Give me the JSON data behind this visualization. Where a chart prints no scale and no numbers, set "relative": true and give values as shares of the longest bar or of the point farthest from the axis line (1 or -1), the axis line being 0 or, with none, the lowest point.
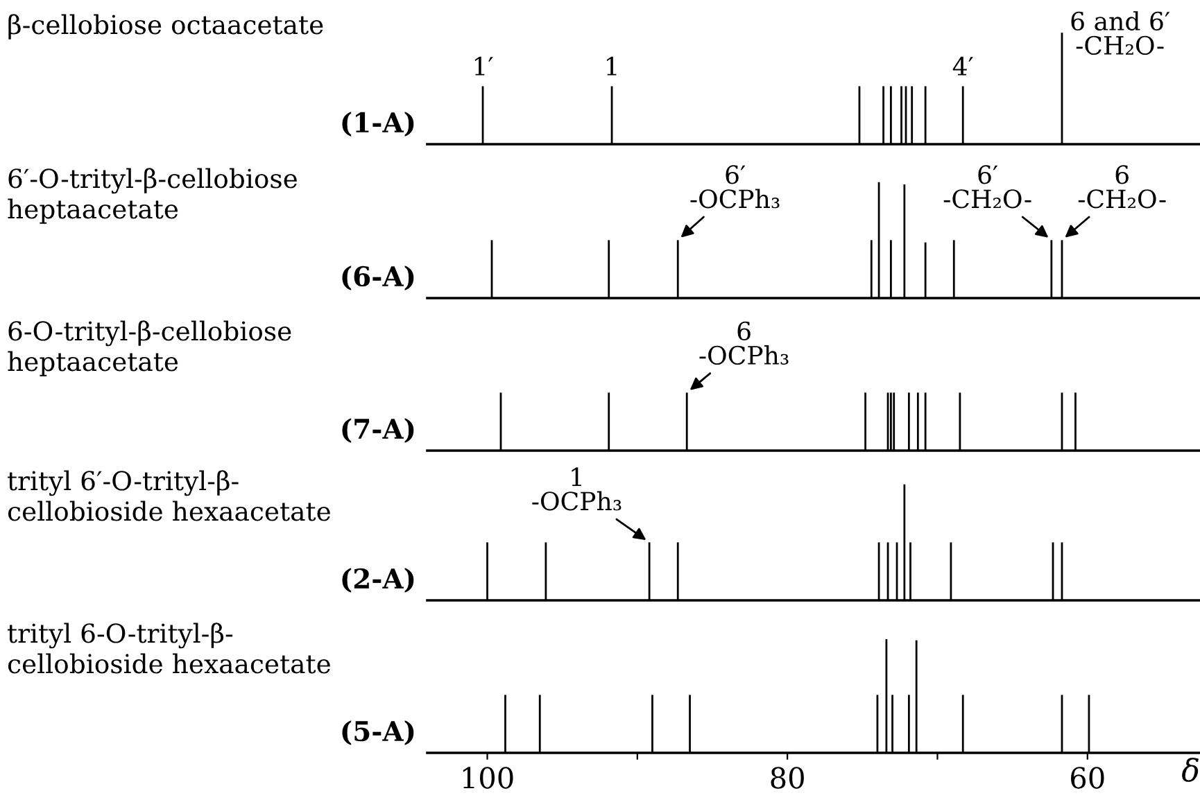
{
  "chart_data": [
    {
      "type": "bar",
      "title": "β-cellobiose octaacetate",
      "subtitle": "(1-A)",
      "relative": true,
      "color": "#000000",
      "xlim": [
        104,
        52.5
      ],
      "grid": false,
      "legend": false,
      "x": [
        100.3,
        91.7,
        75.2,
        73.6,
        73.1,
        72.4,
        72.1,
        71.7,
        70.8,
        68.3,
        61.7
      ],
      "values": [
        0.52,
        0.52,
        0.52,
        0.52,
        0.52,
        0.52,
        0.52,
        0.52,
        0.52,
        0.52,
        1
      ],
      "annotations": [
        {
          "text": "1′",
          "x": 100.3,
          "y": 0.52
        },
        {
          "text": "1",
          "x": 91.7,
          "y": 0.52
        },
        {
          "text": "4′",
          "x": 68.3,
          "y": 0.52
        },
        {
          "text": "6 and 6′\n-CH₂O-",
          "x": 61.7,
          "y": 1
        }
      ]
    },
    {
      "type": "bar",
      "title": "6′-O-trityl-β-cellobiose\nheptaacetate",
      "subtitle": "(6-A)",
      "relative": true,
      "color": "#000000",
      "xlim": [
        104,
        52.5
      ],
      "grid": false,
      "legend": false,
      "x": [
        99.7,
        91.9,
        87.3,
        74.4,
        73.9,
        73.1,
        72.2,
        70.8,
        68.9,
        62.4,
        61.7
      ],
      "values": [
        0.5,
        0.5,
        0.5,
        0.5,
        1,
        0.5,
        0.98,
        0.48,
        0.5,
        0.5,
        0.5
      ],
      "annotations": [
        {
          "text": "6′\n-OCPh₃",
          "x": 87.3,
          "y": 0.5
        },
        {
          "text": "6′\n-CH₂O-",
          "x": 62.4,
          "y": 0.5
        },
        {
          "text": "6\n-CH₂O-",
          "x": 61.7,
          "y": 0.5
        }
      ]
    },
    {
      "type": "bar",
      "title": "6-O-trityl-β-cellobiose\nheptaacetate",
      "subtitle": "(7-A)",
      "relative": true,
      "color": "#000000",
      "xlim": [
        104,
        52.5
      ],
      "grid": false,
      "legend": false,
      "x": [
        99.1,
        91.9,
        86.7,
        74.8,
        73.3,
        73.1,
        72.9,
        71.9,
        71.3,
        70.8,
        68.5,
        61.7,
        60.8
      ],
      "values": [
        1,
        1,
        1,
        1,
        1,
        1,
        1,
        1,
        1,
        1,
        1,
        1,
        1
      ],
      "annotations": [
        {
          "text": "6\n-OCPh₃",
          "x": 86.7,
          "y": 1
        }
      ]
    },
    {
      "type": "bar",
      "title": "trityl 6′-O-trityl-β-\ncellobioside hexaacetate",
      "subtitle": "(2-A)",
      "relative": true,
      "color": "#000000",
      "xlim": [
        104,
        52.5
      ],
      "grid": false,
      "legend": false,
      "x": [
        100.0,
        96.1,
        89.2,
        87.3,
        73.9,
        73.3,
        72.7,
        72.2,
        71.8,
        69.1,
        62.3,
        61.7
      ],
      "values": [
        0.5,
        0.5,
        0.5,
        0.5,
        0.5,
        0.5,
        0.5,
        1,
        0.5,
        0.5,
        0.5,
        0.5
      ],
      "annotations": [
        {
          "text": "1\n-OCPh₃",
          "x": 89.2,
          "y": 0.5
        }
      ]
    },
    {
      "type": "bar",
      "title": "trityl 6-O-trityl-β-\ncellobioside hexaacetate",
      "subtitle": "(5-A)",
      "relative": true,
      "color": "#000000",
      "xlim": [
        104,
        52.5
      ],
      "xticks": [
        100,
        {
          "value": 90,
          "label": null
        },
        80,
        {
          "value": 70,
          "label": null
        },
        60
      ],
      "xlabel": "δ",
      "grid": false,
      "legend": false,
      "x": [
        98.8,
        96.5,
        89.0,
        86.5,
        74.0,
        73.4,
        73.0,
        71.9,
        71.4,
        68.3,
        61.7,
        59.9
      ],
      "values": [
        0.51,
        0.51,
        0.51,
        0.51,
        0.51,
        1,
        0.51,
        0.51,
        0.99,
        0.51,
        0.51,
        0.51
      ]
    }
  ]
}
